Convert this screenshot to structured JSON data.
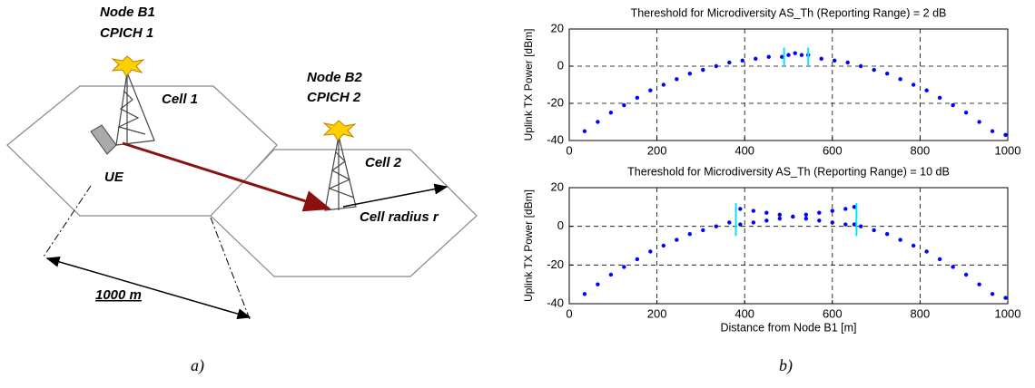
{
  "diagram": {
    "node_b1": "Node B1",
    "cpich_1": "CPICH 1",
    "cell_1": "Cell 1",
    "node_b2": "Node B2",
    "cpich_2": "CPICH 2",
    "cell_2": "Cell 2",
    "ue": "UE",
    "cell_radius": "Cell radius r",
    "distance": "1000 m",
    "caption": "a)"
  },
  "caption_b": "b)",
  "chart_data": [
    {
      "type": "scatter",
      "title": "Thereshold for Microdiversity AS_Th (Reporting Range) = 2 dB",
      "ylabel": "Uplink TX Power [dBm]",
      "xlim": [
        0,
        1000
      ],
      "xticks": [
        0,
        200,
        400,
        600,
        800,
        1000
      ],
      "ylim": [
        -40,
        20
      ],
      "yticks": [
        -40,
        -20,
        0,
        20
      ],
      "grid": true,
      "series": [
        {
          "color": "#0000ff",
          "x": [
            35,
            65,
            95,
            125,
            155,
            185,
            215,
            245,
            275,
            305,
            335,
            365,
            395,
            425,
            455,
            485,
            500,
            515,
            530,
            545,
            575,
            605,
            635,
            665,
            695,
            725,
            755,
            785,
            815,
            845,
            875,
            905,
            935,
            965,
            995
          ],
          "values": [
            -35,
            -30,
            -25,
            -21,
            -17,
            -13,
            -10,
            -7,
            -4,
            -2,
            0,
            2,
            3,
            4,
            5,
            5,
            6,
            7,
            6,
            6,
            4,
            3,
            2,
            0,
            -2,
            -4,
            -7,
            -10,
            -13,
            -17,
            -21,
            -25,
            -30,
            -35,
            -37
          ]
        }
      ],
      "vlines": [
        490,
        545
      ],
      "vline_color": "#00e5ff",
      "vline_span": [
        0,
        10
      ]
    },
    {
      "type": "scatter",
      "title": "Thereshold for Microdiversity AS_Th (Reporting Range) = 10 dB",
      "ylabel": "Uplink TX Power [dBm]",
      "xlabel": "Distance from Node B1 [m]",
      "xlim": [
        0,
        1000
      ],
      "xticks": [
        0,
        200,
        400,
        600,
        800,
        1000
      ],
      "ylim": [
        -40,
        20
      ],
      "yticks": [
        -40,
        -20,
        0,
        20
      ],
      "grid": true,
      "series": [
        {
          "color": "#0000ff",
          "x": [
            35,
            65,
            95,
            125,
            155,
            185,
            215,
            245,
            275,
            305,
            335,
            365,
            665,
            695,
            725,
            755,
            785,
            815,
            845,
            875,
            905,
            935,
            965,
            995
          ],
          "values": [
            -35,
            -30,
            -25,
            -21,
            -17,
            -13,
            -10,
            -7,
            -4,
            -2,
            0,
            2,
            0,
            -2,
            -4,
            -7,
            -10,
            -13,
            -17,
            -21,
            -25,
            -30,
            -35,
            -37
          ]
        },
        {
          "color": "#0000ff",
          "x": [
            390,
            420,
            450,
            480,
            510,
            540,
            570,
            600,
            630,
            650
          ],
          "values": [
            9,
            8,
            7,
            6,
            5,
            4,
            3,
            2,
            1,
            1
          ]
        },
        {
          "color": "#0000ff",
          "x": [
            390,
            420,
            450,
            480,
            510,
            540,
            570,
            600,
            630,
            650
          ],
          "values": [
            1,
            2,
            3,
            4,
            5,
            6,
            7,
            8,
            9,
            10
          ]
        }
      ],
      "vlines": [
        380,
        655
      ],
      "vline_color": "#00e5ff",
      "vline_span": [
        -5,
        12
      ]
    }
  ]
}
